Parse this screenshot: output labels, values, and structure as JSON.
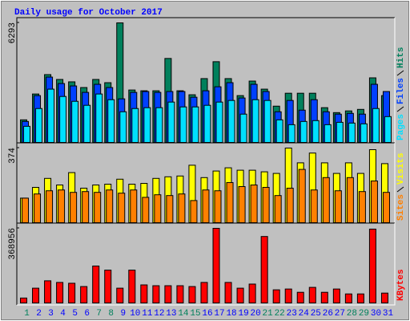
{
  "title": "Daily usage for October 2017",
  "chart_data": [
    {
      "type": "bar",
      "ylim": [
        0,
        6293
      ],
      "yticks": [
        6293
      ],
      "series": [
        {
          "name": "Hits",
          "color": "#00805c",
          "values": [
            1190,
            2550,
            3570,
            3315,
            3190,
            2890,
            3315,
            3145,
            6293,
            2760,
            2720,
            2720,
            4420,
            2720,
            2510,
            3360,
            4250,
            3360,
            2465,
            3230,
            2805,
            1910,
            2590,
            2590,
            2590,
            1830,
            1570,
            1660,
            1740,
            3400,
            2465
          ]
        },
        {
          "name": "Files",
          "color": "#0040ff",
          "values": [
            1105,
            2465,
            3440,
            3100,
            2975,
            2635,
            3060,
            2890,
            2295,
            2635,
            2680,
            2635,
            2680,
            2680,
            2380,
            2720,
            2930,
            3145,
            2340,
            3060,
            2680,
            1615,
            2210,
            1700,
            2250,
            1615,
            1490,
            1530,
            1490,
            3060,
            2680
          ]
        },
        {
          "name": "Pages",
          "color": "#00e0ff",
          "values": [
            850,
            1785,
            2805,
            2420,
            2165,
            1955,
            2550,
            2250,
            1615,
            1785,
            1830,
            1830,
            2125,
            1870,
            1870,
            1955,
            2125,
            2210,
            1490,
            2250,
            2210,
            1190,
            935,
            1105,
            1150,
            935,
            1060,
            1020,
            980,
            1785,
            1360
          ]
        }
      ]
    },
    {
      "type": "bar",
      "ylim": [
        0,
        374
      ],
      "yticks": [
        374
      ],
      "series": [
        {
          "name": "Visits",
          "color": "#ffff00",
          "values": [
            123,
            177,
            222,
            189,
            251,
            173,
            189,
            193,
            218,
            193,
            197,
            222,
            230,
            234,
            288,
            226,
            259,
            275,
            263,
            263,
            255,
            247,
            374,
            300,
            349,
            300,
            247,
            300,
            247,
            366,
            296
          ]
        },
        {
          "name": "Sites",
          "color": "#ff8000",
          "values": [
            123,
            144,
            160,
            164,
            152,
            156,
            152,
            164,
            148,
            164,
            127,
            140,
            136,
            144,
            111,
            164,
            160,
            201,
            181,
            189,
            177,
            136,
            173,
            267,
            164,
            226,
            160,
            226,
            156,
            209,
            152
          ]
        }
      ]
    },
    {
      "type": "bar",
      "ylim": [
        0,
        368956
      ],
      "yticks": [
        368956
      ],
      "categories": [
        "1",
        "2",
        "3",
        "4",
        "5",
        "6",
        "7",
        "8",
        "9",
        "10",
        "11",
        "12",
        "13",
        "14",
        "15",
        "16",
        "17",
        "18",
        "19",
        "20",
        "21",
        "22",
        "23",
        "24",
        "25",
        "26",
        "27",
        "28",
        "29",
        "30",
        "31"
      ],
      "category_colors": [
        "#00805c",
        "#0000ff",
        "#0000ff",
        "#0000ff",
        "#0000ff",
        "#0000ff",
        "#00805c",
        "#00805c",
        "#0000ff",
        "#0000ff",
        "#0000ff",
        "#0000ff",
        "#0000ff",
        "#00805c",
        "#00805c",
        "#0000ff",
        "#0000ff",
        "#0000ff",
        "#0000ff",
        "#0000ff",
        "#00805c",
        "#00805c",
        "#0000ff",
        "#0000ff",
        "#0000ff",
        "#0000ff",
        "#0000ff",
        "#00805c",
        "#00805c",
        "#0000ff",
        "#0000ff"
      ],
      "series": [
        {
          "name": "KBytes",
          "color": "#ff0000",
          "values": [
            24300,
            73000,
            109500,
            101400,
            97300,
            81100,
            182500,
            162200,
            73000,
            162200,
            89200,
            85200,
            85200,
            85200,
            81100,
            101400,
            368956,
            101400,
            73000,
            93300,
            328500,
            64900,
            68900,
            52700,
            77000,
            52700,
            68900,
            44600,
            44600,
            365000,
            48700
          ]
        }
      ]
    }
  ]
}
